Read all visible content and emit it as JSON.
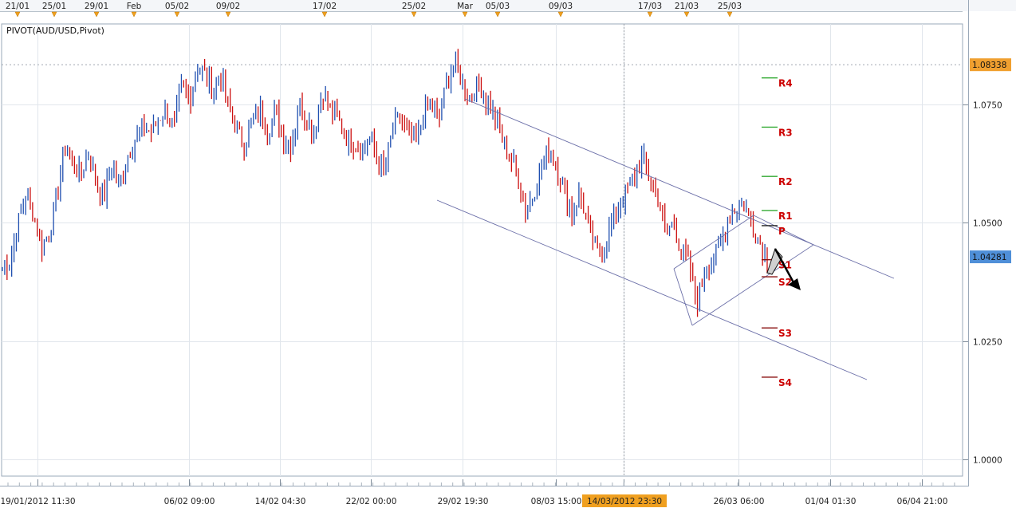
{
  "chart_data": {
    "type": "candlestick",
    "title": "PIVOT(AUD/USD,Pivot)",
    "symbol": "AUD/USD",
    "y_ticks": [
      "1.0750",
      "1.0500",
      "1.0250",
      "1.0000"
    ],
    "ylim": [
      0.9965,
      1.092
    ],
    "price_labels": [
      {
        "label": "1.08338",
        "value": 1.08338,
        "color": "#f0a030"
      },
      {
        "label": "1.04281",
        "value": 1.04281,
        "color": "#4f8fd8"
      }
    ],
    "top_events": [
      "21/01",
      "25/01",
      "29/01",
      "Feb",
      "05/02",
      "09/02",
      "17/02",
      "25/02",
      "Mar",
      "05/03",
      "09/03",
      "17/03",
      "21/03",
      "25/03"
    ],
    "x_ticks": [
      "19/01/2012 11:30",
      "06/02 09:00",
      "14/02 04:30",
      "22/02 00:00",
      "29/02 19:30",
      "08/03 15:00",
      "14/03/2012 23:30",
      "26/03 06:00",
      "01/04 01:30",
      "06/04 21:00"
    ],
    "cursor_label": "14/03/2012 23:30",
    "pivot_levels": [
      {
        "name": "R4",
        "value": 1.0806
      },
      {
        "name": "R3",
        "value": 1.0702
      },
      {
        "name": "R2",
        "value": 1.0598
      },
      {
        "name": "R1",
        "value": 1.0526
      },
      {
        "name": "P",
        "value": 1.0494
      },
      {
        "name": "S1",
        "value": 1.0422
      },
      {
        "name": "S2",
        "value": 1.0386
      },
      {
        "name": "S3",
        "value": 1.0278
      },
      {
        "name": "S4",
        "value": 1.0174
      }
    ],
    "price_path": [
      1.0405,
      1.042,
      1.05,
      1.056,
      1.052,
      1.045,
      1.048,
      1.056,
      1.066,
      1.063,
      1.06,
      1.065,
      1.059,
      1.055,
      1.062,
      1.058,
      1.064,
      1.068,
      1.07,
      1.069,
      1.072,
      1.074,
      1.07,
      1.079,
      1.076,
      1.083,
      1.081,
      1.078,
      1.081,
      1.074,
      1.07,
      1.066,
      1.072,
      1.074,
      1.069,
      1.074,
      1.068,
      1.066,
      1.075,
      1.072,
      1.069,
      1.078,
      1.074,
      1.072,
      1.068,
      1.067,
      1.065,
      1.068,
      1.064,
      1.061,
      1.07,
      1.072,
      1.068,
      1.067,
      1.073,
      1.075,
      1.072,
      1.08,
      1.084,
      1.079,
      1.076,
      1.08,
      1.076,
      1.073,
      1.068,
      1.064,
      1.06,
      1.053,
      1.056,
      1.061,
      1.066,
      1.062,
      1.057,
      1.052,
      1.056,
      1.05,
      1.045,
      1.043,
      1.05,
      1.053,
      1.057,
      1.06,
      1.064,
      1.059,
      1.055,
      1.048,
      1.05,
      1.044,
      1.041,
      1.033,
      1.04,
      1.042,
      1.045,
      1.051,
      1.053,
      1.054,
      1.05,
      1.046,
      1.043
    ]
  }
}
